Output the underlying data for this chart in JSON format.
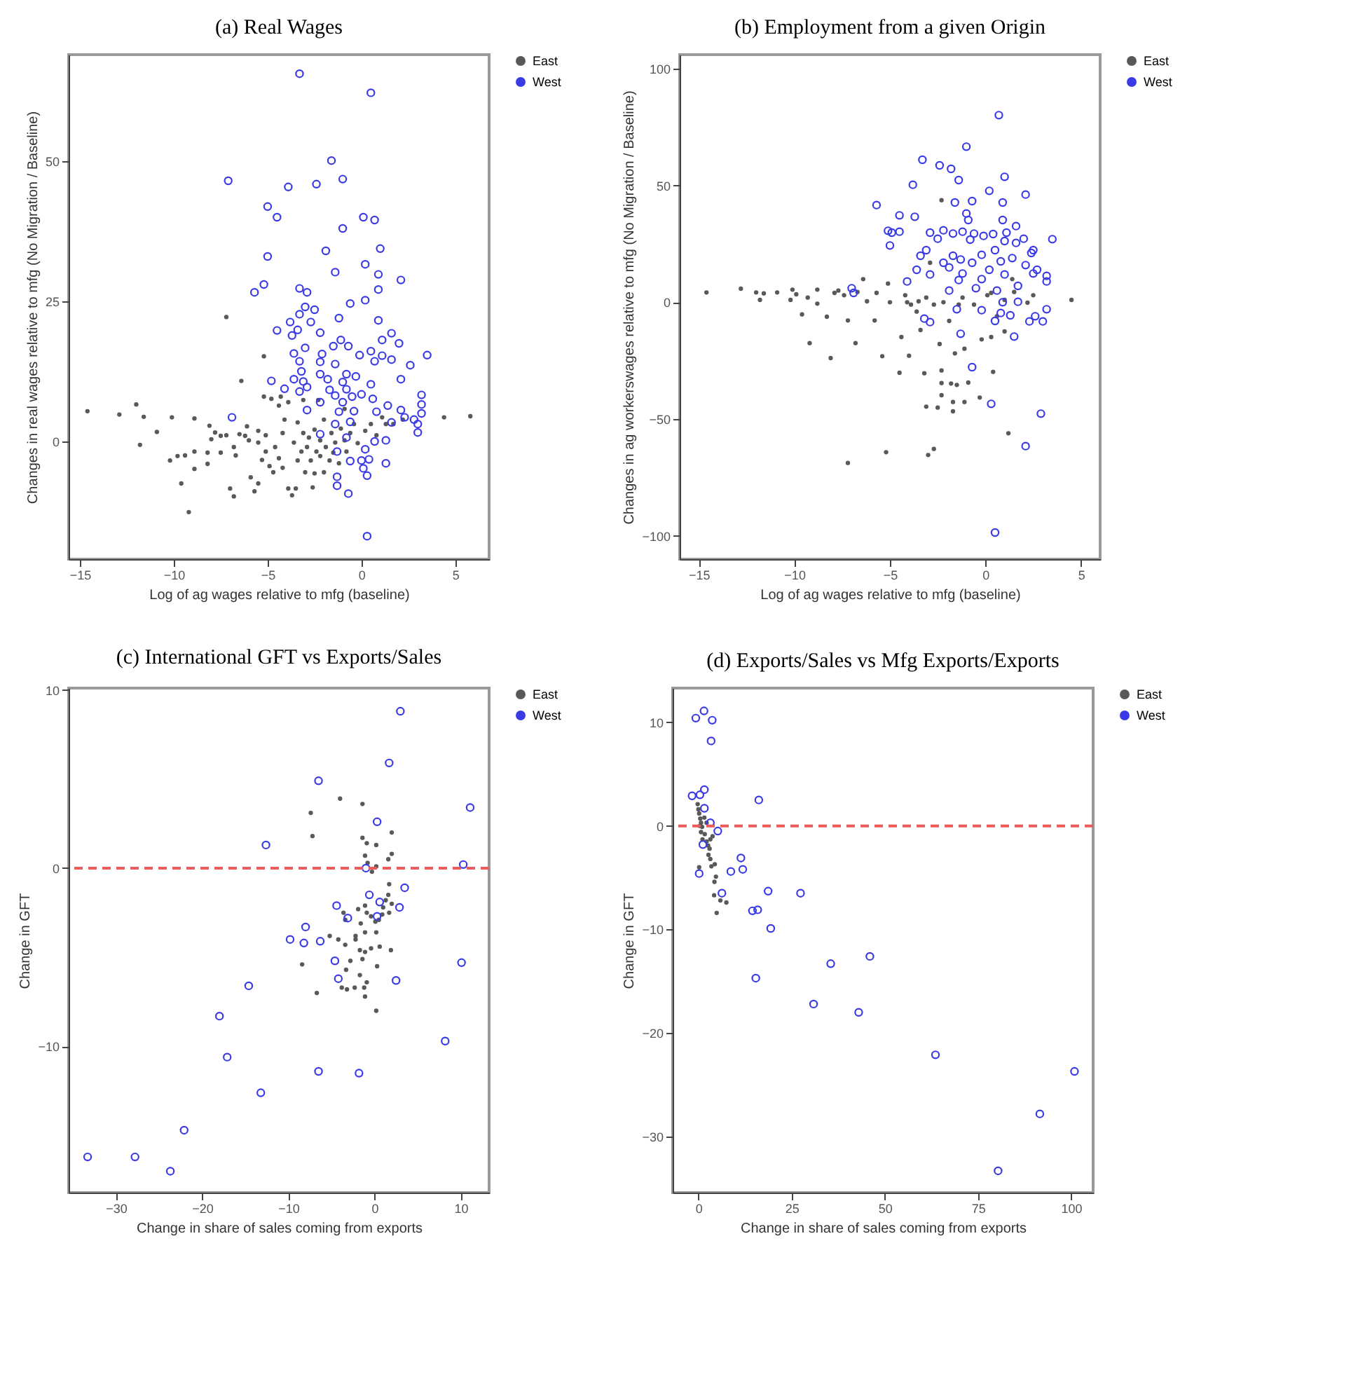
{
  "chart_data": [
    {
      "type": "scatter",
      "title": "(a) Real Wages",
      "xlabel": "Log of ag wages relative to mfg (baseline)",
      "ylabel": "Changes in real wages relative to mfg (No Migration / Baseline)",
      "xlim": [
        -15.6,
        6.8
      ],
      "ylim": [
        -21,
        69
      ],
      "xticks": [
        -15,
        -10,
        -5,
        0,
        5
      ],
      "yticks": [
        0,
        25,
        50
      ],
      "legend": "right",
      "series": [
        {
          "name": "East",
          "color": "#595959",
          "x": [
            -14.6,
            -12.9,
            -12.0,
            -11.6,
            -11.8,
            -10.9,
            -10.1,
            -8.9,
            -10.2,
            -9.8,
            -9.6,
            -9.2,
            -9.4,
            -8.9,
            -8.9,
            -8.2,
            -8.2,
            -8.1,
            -7.8,
            -8.0,
            -7.5,
            -7.5,
            -7.2,
            -7.2,
            -7.0,
            -6.8,
            -6.8,
            -6.7,
            -6.4,
            -6.5,
            -6.2,
            -6.1,
            -6.0,
            -5.9,
            -5.7,
            -5.5,
            -5.5,
            -5.5,
            -5.3,
            -5.2,
            -5.2,
            -5.1,
            -5.1,
            -4.9,
            -4.8,
            -4.7,
            -4.6,
            -4.4,
            -4.4,
            -4.2,
            -4.2,
            -4.1,
            -3.9,
            -3.9,
            -3.7,
            -3.5,
            -3.6,
            -3.4,
            -3.4,
            -3.2,
            -3.1,
            -3.0,
            -2.9,
            -2.8,
            -2.7,
            -2.6,
            -2.5,
            -2.5,
            -2.4,
            -2.3,
            -2.2,
            -2.2,
            -2.0,
            -2.0,
            -1.9,
            -1.7,
            -1.6,
            -1.5,
            -1.4,
            -1.2,
            -1.1,
            -0.9,
            -0.8,
            -0.6,
            -0.4,
            -0.2,
            0.2,
            0.5,
            0.8,
            1.1,
            1.3,
            1.7,
            2.2,
            4.4,
            5.8,
            -4.3,
            -3.1,
            -0.9
          ],
          "values": [
            5.4,
            4.8,
            6.6,
            4.4,
            -0.6,
            1.7,
            4.3,
            4.1,
            -3.4,
            -2.6,
            -7.5,
            -12.6,
            -2.5,
            -4.9,
            -1.8,
            -4.0,
            -2.0,
            2.8,
            1.6,
            0.4,
            1.0,
            -2.0,
            1.1,
            22.2,
            -8.4,
            -9.8,
            -1.0,
            -2.5,
            10.8,
            1.3,
            1.0,
            2.7,
            0.2,
            -6.4,
            -8.9,
            1.9,
            -0.2,
            -7.5,
            -3.3,
            15.2,
            8.0,
            1.1,
            -1.8,
            -4.4,
            7.6,
            -5.5,
            -1.0,
            6.4,
            -3.0,
            1.5,
            -4.7,
            3.9,
            7.0,
            -8.4,
            -9.6,
            -8.4,
            -0.2,
            -3.4,
            3.4,
            -1.8,
            1.5,
            -5.5,
            -1.0,
            0.7,
            -3.4,
            -8.2,
            -5.7,
            2.1,
            -1.8,
            7.4,
            -2.6,
            0.2,
            -5.5,
            3.9,
            -1.0,
            -3.4,
            1.5,
            -2.0,
            -0.2,
            -3.9,
            2.3,
            0.2,
            -1.8,
            1.5,
            3.1,
            -0.3,
            1.9,
            3.1,
            1.1,
            4.3,
            3.1,
            3.1,
            3.9,
            4.3,
            4.5,
            8.0,
            7.4,
            5.8
          ]
        },
        {
          "name": "West",
          "color": "#3a3ae6",
          "x": [
            -3.3,
            0.5,
            -1.6,
            -7.1,
            -3.9,
            -2.4,
            -1.0,
            -5.0,
            -4.5,
            0.1,
            0.7,
            -1.0,
            -1.9,
            1.0,
            -5.0,
            -1.4,
            0.2,
            0.9,
            2.1,
            -5.2,
            -5.7,
            -3.3,
            -2.9,
            -0.6,
            0.2,
            0.9,
            -3.0,
            -3.3,
            -2.5,
            -3.8,
            -2.7,
            -1.2,
            0.9,
            -4.5,
            -3.4,
            -3.7,
            -2.2,
            -1.1,
            1.6,
            1.1,
            2.0,
            -3.0,
            -1.5,
            -0.7,
            0.5,
            -3.6,
            -2.1,
            -0.1,
            1.1,
            3.5,
            -3.3,
            -2.2,
            -1.4,
            0.7,
            1.6,
            2.6,
            -3.2,
            -2.2,
            -0.8,
            -0.3,
            -4.8,
            -3.6,
            -3.1,
            -1.8,
            -1.0,
            2.1,
            -4.1,
            -2.9,
            -1.7,
            -0.8,
            0.5,
            -3.3,
            -1.4,
            -0.5,
            0.0,
            3.2,
            -2.2,
            -1.0,
            0.6,
            3.2,
            1.4,
            -6.9,
            -2.9,
            -1.2,
            -0.4,
            0.8,
            2.1,
            3.2,
            2.3,
            2.8,
            1.6,
            3.0,
            -1.4,
            -0.6,
            -2.2,
            3.0,
            -0.8,
            0.7,
            1.3,
            0.2,
            -1.3,
            -0.6,
            0.0,
            0.4,
            1.3,
            0.1,
            0.3,
            -1.3,
            -1.3,
            -0.7,
            0.3
          ],
          "values": [
            65.6,
            62.2,
            50.1,
            46.5,
            45.4,
            45.9,
            46.8,
            41.9,
            40.0,
            40.0,
            39.5,
            38.0,
            34.0,
            34.4,
            33.0,
            30.2,
            31.6,
            29.8,
            28.8,
            28.0,
            26.6,
            27.3,
            26.6,
            24.6,
            25.2,
            27.1,
            24.0,
            22.7,
            23.5,
            21.3,
            21.3,
            22.0,
            21.6,
            19.8,
            19.9,
            18.9,
            19.4,
            18.1,
            19.3,
            18.1,
            17.5,
            16.7,
            17.0,
            17.0,
            16.1,
            15.7,
            15.6,
            15.4,
            15.3,
            15.4,
            14.3,
            14.2,
            13.8,
            14.3,
            14.6,
            13.6,
            12.5,
            12.0,
            12.0,
            11.6,
            10.8,
            11.1,
            10.7,
            11.1,
            10.6,
            11.1,
            9.4,
            9.7,
            9.2,
            9.3,
            10.2,
            8.9,
            8.2,
            8.0,
            8.4,
            8.3,
            7.0,
            7.0,
            7.6,
            6.6,
            6.4,
            4.3,
            5.6,
            5.3,
            5.4,
            5.3,
            5.6,
            5.0,
            4.3,
            3.9,
            3.4,
            3.1,
            3.1,
            3.5,
            1.3,
            1.6,
            0.7,
            0.0,
            0.2,
            -1.4,
            -1.8,
            -3.5,
            -3.4,
            -3.2,
            -3.9,
            -4.8,
            -6.1,
            -6.3,
            -7.9,
            -9.3,
            -16.9
          ]
        }
      ]
    },
    {
      "type": "scatter",
      "title": "(b) Employment from a given Origin",
      "xlabel": "Log of ag wages relative to mfg (baseline)",
      "ylabel": "Changes in ag workerswages relative to mfg (No Migration / Baseline)",
      "xlim": [
        -16,
        6
      ],
      "ylim": [
        -110,
        106
      ],
      "xticks": [
        -15,
        -10,
        -5,
        0,
        5
      ],
      "yticks": [
        -100,
        -50,
        0,
        50,
        100
      ],
      "legend": "right",
      "series": [
        {
          "name": "East",
          "color": "#595959",
          "x": [
            -14.6,
            -12.8,
            -12.0,
            -11.6,
            -11.8,
            -10.9,
            -10.1,
            -10.2,
            -9.9,
            -9.6,
            -9.3,
            -8.8,
            -8.8,
            -9.2,
            -8.3,
            -8.1,
            -7.9,
            -7.7,
            -7.4,
            -7.2,
            -7.2,
            -6.8,
            -6.7,
            -6.4,
            -6.2,
            -5.8,
            -5.7,
            -5.4,
            -5.2,
            -5.1,
            -5.0,
            -4.5,
            -4.4,
            -4.2,
            -4.0,
            -3.9,
            -3.6,
            -3.5,
            -3.1,
            -3.2,
            -3.0,
            -2.7,
            -2.5,
            -2.3,
            -2.3,
            -2.3,
            -2.4,
            -2.2,
            -1.8,
            -1.7,
            -1.7,
            -1.5,
            -1.6,
            -2.3,
            -1.4,
            -1.1,
            -0.9,
            -1.1,
            -0.3,
            -0.2,
            0.4,
            0.1,
            0.6,
            1.0,
            1.0,
            1.2,
            1.4,
            1.5,
            2.2,
            2.5,
            4.5,
            -3.1,
            -2.7,
            -1.2,
            -0.6,
            0.3,
            -4.1,
            -2.9,
            -3.4,
            -1.9,
            0.3
          ],
          "values": [
            4.2,
            5.8,
            4.2,
            3.8,
            1.0,
            4.2,
            5.4,
            1.0,
            3.4,
            -5.2,
            2.0,
            5.4,
            -0.6,
            -17.5,
            -6.2,
            -23.9,
            4.0,
            5.0,
            3.0,
            -7.8,
            -68.8,
            -17.5,
            4.4,
            9.9,
            0.4,
            -7.8,
            4.0,
            -23.1,
            -64.2,
            8.0,
            0.0,
            -30.2,
            -14.9,
            3.0,
            -22.9,
            -1.0,
            -4.0,
            0.4,
            -44.7,
            -30.4,
            -65.4,
            -62.8,
            -45.1,
            -39.8,
            -34.6,
            -29.2,
            -17.9,
            0.0,
            -34.8,
            -46.7,
            -42.7,
            -35.4,
            -21.9,
            43.7,
            -1.0,
            -42.7,
            -34.4,
            -19.9,
            -40.8,
            -15.9,
            -29.8,
            3.0,
            -6.0,
            -12.5,
            1.0,
            -56.1,
            9.9,
            4.4,
            -0.2,
            3.0,
            1.0,
            2.0,
            -1.0,
            2.0,
            -1.0,
            4.0,
            0.0,
            16.9,
            -11.9,
            -8.0,
            -14.9
          ]
        },
        {
          "name": "West",
          "color": "#3a3ae6",
          "x": [
            0.7,
            -1.0,
            -3.3,
            -2.4,
            -1.8,
            -1.4,
            1.0,
            -3.8,
            0.2,
            2.1,
            -5.7,
            -1.6,
            -0.7,
            0.9,
            -4.5,
            -3.7,
            -1.0,
            -0.9,
            0.9,
            1.6,
            -5.1,
            -4.5,
            -4.9,
            -2.9,
            -2.2,
            -1.7,
            -1.2,
            -0.6,
            -0.1,
            0.4,
            1.1,
            -2.5,
            -0.8,
            1.0,
            2.0,
            3.5,
            -5.0,
            1.6,
            -3.1,
            2.5,
            2.4,
            0.5,
            -3.4,
            -1.7,
            -0.2,
            -1.3,
            1.4,
            -2.2,
            -0.7,
            0.8,
            2.1,
            -3.6,
            -1.9,
            0.2,
            2.7,
            -2.9,
            -1.2,
            1.0,
            2.5,
            3.2,
            -1.4,
            -0.2,
            3.2,
            -4.1,
            1.7,
            -7.0,
            -6.9,
            -0.5,
            -1.9,
            0.6,
            1.7,
            0.9,
            -1.5,
            -0.2,
            0.8,
            1.3,
            3.2,
            -3.2,
            -2.9,
            0.5,
            2.3,
            3.0,
            2.6,
            -1.3,
            1.5,
            -0.7,
            0.3,
            2.9,
            2.1,
            0.5
          ],
          "values": [
            80.1,
            66.6,
            61.0,
            58.6,
            57.1,
            52.3,
            53.7,
            50.3,
            47.7,
            46.1,
            41.6,
            42.7,
            43.3,
            42.7,
            37.2,
            36.6,
            38.0,
            35.2,
            35.2,
            32.6,
            30.6,
            30.2,
            29.8,
            29.8,
            30.8,
            29.4,
            30.2,
            29.4,
            28.4,
            29.2,
            29.8,
            27.2,
            26.8,
            26.2,
            27.2,
            27.0,
            24.3,
            25.4,
            22.3,
            22.3,
            21.1,
            22.3,
            19.9,
            19.9,
            20.3,
            18.3,
            18.9,
            16.9,
            16.9,
            17.5,
            15.9,
            13.9,
            14.9,
            13.9,
            13.9,
            11.9,
            12.3,
            11.9,
            12.3,
            11.3,
            9.5,
            9.9,
            8.9,
            8.9,
            7.0,
            6.0,
            4.0,
            6.0,
            5.0,
            5.0,
            0.2,
            0.0,
            -3.0,
            -3.4,
            -4.6,
            -5.6,
            -3.0,
            -7.0,
            -8.5,
            -8.0,
            -8.2,
            -8.2,
            -6.0,
            -13.5,
            -14.7,
            -27.8,
            -43.5,
            -47.7,
            -61.6,
            -98.6
          ]
        }
      ]
    },
    {
      "type": "scatter",
      "title": "(c) International GFT vs Exports/Sales",
      "xlabel": "Change in share of sales coming from exports",
      "ylabel": "Change in GFT",
      "xlim": [
        -35.5,
        13.3
      ],
      "ylim": [
        -18.2,
        10.1
      ],
      "xticks": [
        -30,
        -20,
        -10,
        0,
        10
      ],
      "yticks": [
        -10,
        0,
        10
      ],
      "legend": "right",
      "ref_lines": [
        {
          "axis": "y",
          "value": 0,
          "color": "#ee5a5a",
          "line_style": "dashed"
        }
      ],
      "series": [
        {
          "name": "East",
          "color": "#595959",
          "x": [
            -4.0,
            -1.4,
            -7.4,
            -7.2,
            2.0,
            -1.4,
            -0.9,
            0.2,
            -1.1,
            2.0,
            1.6,
            -0.8,
            0.2,
            -0.3,
            1.7,
            1.6,
            1.3,
            2.0,
            1.7,
            1.0,
            0.9,
            0.5,
            0.1,
            -0.4,
            -1.1,
            -1.9,
            -0.9,
            -1.6,
            -1.1,
            0.2,
            -3.6,
            -3.4,
            -5.2,
            -4.2,
            -3.4,
            -2.2,
            -2.2,
            -1.7,
            -1.1,
            -0.4,
            0.6,
            1.9,
            -1.4,
            -2.8,
            -8.4,
            0.3,
            -3.3,
            -1.7,
            -0.9,
            -3.8,
            -3.2,
            -2.3,
            -1.2,
            -6.7,
            -1.1,
            0.2
          ],
          "values": [
            3.9,
            3.6,
            3.1,
            1.8,
            2.0,
            1.7,
            1.4,
            1.3,
            0.7,
            0.8,
            0.5,
            0.3,
            0.1,
            -0.2,
            -0.9,
            -1.5,
            -1.8,
            -2.0,
            -2.5,
            -2.2,
            -2.6,
            -2.9,
            -3.0,
            -2.7,
            -2.1,
            -2.3,
            -2.5,
            -3.1,
            -3.6,
            -3.6,
            -2.5,
            -2.9,
            -3.8,
            -4.0,
            -4.3,
            -3.8,
            -4.0,
            -4.6,
            -4.7,
            -4.5,
            -4.4,
            -4.6,
            -5.1,
            -5.2,
            -5.4,
            -5.5,
            -5.7,
            -6.0,
            -6.4,
            -6.7,
            -6.8,
            -6.7,
            -6.7,
            -7.0,
            -7.2,
            -8.0
          ]
        },
        {
          "name": "West",
          "color": "#3a3ae6",
          "x": [
            3.0,
            1.7,
            -6.5,
            11.1,
            0.3,
            -12.6,
            10.3,
            -1.0,
            3.5,
            -0.6,
            0.6,
            -4.4,
            2.9,
            -3.1,
            -8.0,
            -9.8,
            -8.2,
            -6.3,
            -4.6,
            10.1,
            -4.2,
            2.5,
            -14.6,
            -18.0,
            8.2,
            -17.1,
            -6.5,
            -1.8,
            -13.2,
            -22.1,
            -33.3,
            -27.8,
            -23.7,
            0.3
          ],
          "values": [
            8.8,
            5.9,
            4.9,
            3.4,
            2.6,
            1.3,
            0.2,
            0.0,
            -1.1,
            -1.5,
            -1.9,
            -2.1,
            -2.2,
            -2.8,
            -3.3,
            -4.0,
            -4.2,
            -4.1,
            -5.2,
            -5.3,
            -6.2,
            -6.3,
            -6.6,
            -8.3,
            -9.7,
            -10.6,
            -11.4,
            -11.5,
            -12.6,
            -14.7,
            -16.2,
            -16.2,
            -17.0,
            -2.7
          ]
        }
      ]
    },
    {
      "type": "scatter",
      "title": "(d) Exports/Sales vs Mfg Exports/Exports",
      "xlabel": "Change in share of sales coming from exports",
      "ylabel": "Change in GFT",
      "xlim": [
        -6.9,
        105.9
      ],
      "ylim": [
        -35.4,
        13.3
      ],
      "xticks": [
        0,
        25,
        50,
        75,
        100
      ],
      "yticks": [
        -30,
        -20,
        -10,
        0,
        10
      ],
      "legend": "right",
      "ref_lines": [
        {
          "axis": "y",
          "value": 0,
          "color": "#ee5a5a",
          "line_style": "dashed"
        }
      ],
      "series": [
        {
          "name": "East",
          "color": "#595959",
          "x": [
            -0.2,
            0.0,
            0.2,
            0.5,
            0.7,
            1.0,
            1.3,
            1.7,
            2.0,
            2.2,
            2.6,
            0.7,
            1.1,
            2.6,
            3.2,
            3.8,
            3.0,
            2.7,
            3.2,
            3.8,
            4.4,
            3.5,
            0.2,
            4.7,
            4.3,
            4.2,
            5.9,
            7.5,
            4.9,
            1.6,
            2.2,
            0.4
          ],
          "values": [
            2.1,
            1.6,
            1.2,
            0.7,
            0.3,
            -0.1,
            null,
            -0.8,
            null,
            -1.5,
            -1.9,
            -0.6,
            -1.3,
            null,
            -1.3,
            -1.0,
            -2.2,
            -2.8,
            -3.2,
            null,
            -3.7,
            -3.9,
            -4.0,
            -4.9,
            -5.4,
            -6.7,
            -7.2,
            -7.4,
            -8.4,
            0.8,
            0.3,
            0.0
          ]
        },
        {
          "name": "West",
          "color": "#3a3ae6",
          "x": [
            1.5,
            -0.7,
            3.7,
            3.4,
            1.6,
            0.4,
            -1.7,
            16.2,
            1.6,
            3.2,
            5.2,
            1.2,
            11.4,
            11.9,
            8.7,
            0.2,
            18.7,
            27.4,
            6.3,
            14.5,
            15.9,
            19.4,
            46.0,
            35.5,
            15.4,
            30.9,
            43.0,
            63.6,
            100.9,
            91.6,
            80.4
          ],
          "values": [
            11.1,
            10.4,
            10.2,
            8.2,
            3.5,
            3.0,
            2.9,
            2.5,
            1.7,
            0.3,
            -0.5,
            -1.8,
            -3.1,
            -4.2,
            -4.4,
            -4.6,
            -6.3,
            -6.5,
            -6.5,
            -8.2,
            -8.1,
            -9.9,
            -12.6,
            -13.3,
            -14.7,
            -17.2,
            -18.0,
            -22.1,
            -23.7,
            -27.8,
            -33.3
          ]
        }
      ]
    }
  ]
}
